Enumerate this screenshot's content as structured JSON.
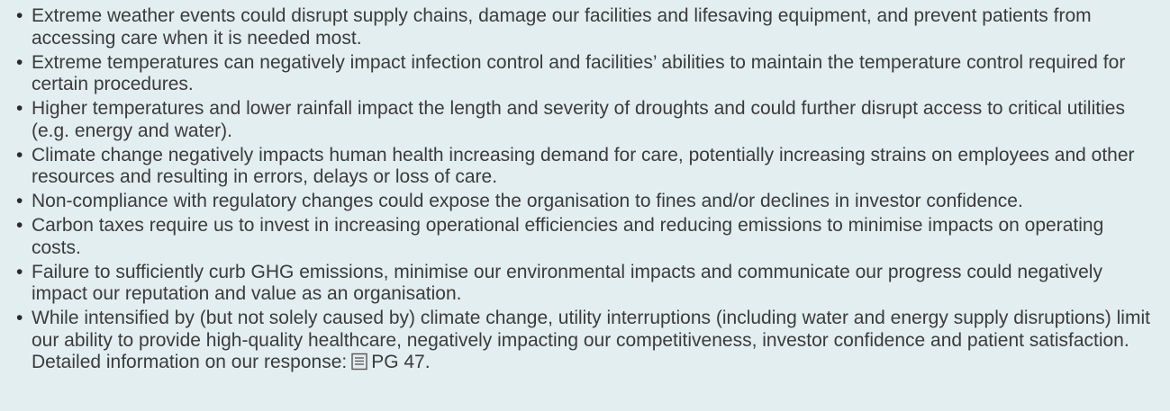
{
  "items": [
    {
      "text": "Extreme weather events could disrupt supply chains, damage our facilities and lifesaving equipment, and prevent patients from accessing care when it is needed most."
    },
    {
      "text": "Extreme temperatures can negatively impact infection control and facilities’ abilities to maintain the temperature control required for certain procedures."
    },
    {
      "text": "Higher temperatures and lower rainfall impact the length and severity of droughts and could further disrupt access to critical utilities (e.g. energy and water)."
    },
    {
      "text": "Climate change negatively impacts human health increasing demand for care, potentially increasing strains on employees and other resources and resulting in errors, delays or loss of care."
    },
    {
      "text": "Non-compliance with regulatory changes could expose the organisation to fines and/or declines in investor confidence."
    },
    {
      "text": "Carbon taxes require us to invest in increasing operational efficiencies and reducing emissions to minimise impacts on operating costs."
    },
    {
      "text": "Failure to sufficiently curb GHG emissions, minimise our environmental impacts and communicate our progress could negatively impact our reputation and value as an organisation."
    },
    {
      "text": "While intensified by (but not solely caused by) climate change, utility interruptions (including water and energy supply disruptions) limit our ability to provide high-quality healthcare, negatively impacting our competitiveness, investor confidence and patient satisfaction. Detailed information on our response:",
      "link": "PG 47."
    }
  ]
}
